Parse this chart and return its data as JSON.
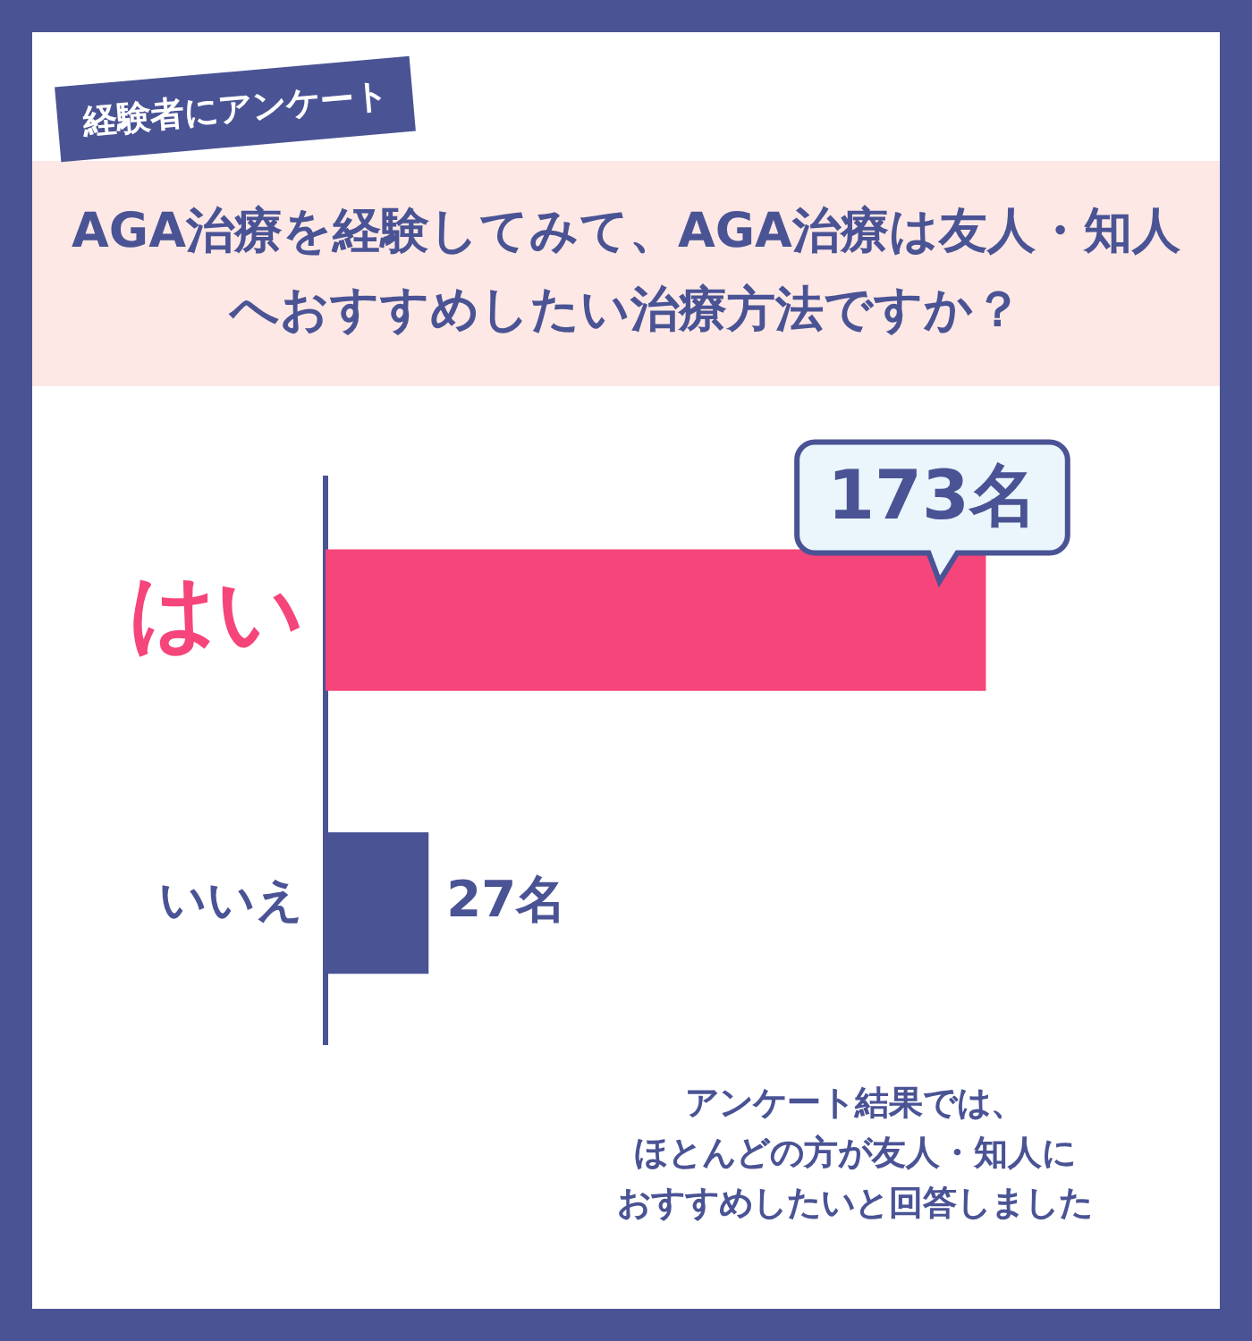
{
  "chart_data": {
    "type": "bar",
    "orientation": "horizontal",
    "subtitle": "経験者にアンケート",
    "title": "AGA治療を経験してみて、AGA治療は友人・知人へおすすめしたい治療方法ですか？",
    "categories": [
      "はい",
      "いいえ"
    ],
    "values": [
      173,
      27
    ],
    "colors": [
      "#f5457a",
      "#4a5394"
    ],
    "value_labels": [
      "173名",
      "27名"
    ],
    "grid": false,
    "legend": false,
    "annotations": [
      "アンケート結果では、",
      "ほとんどの方が友人・知人に",
      "おすすめしたいと回答しました"
    ]
  }
}
